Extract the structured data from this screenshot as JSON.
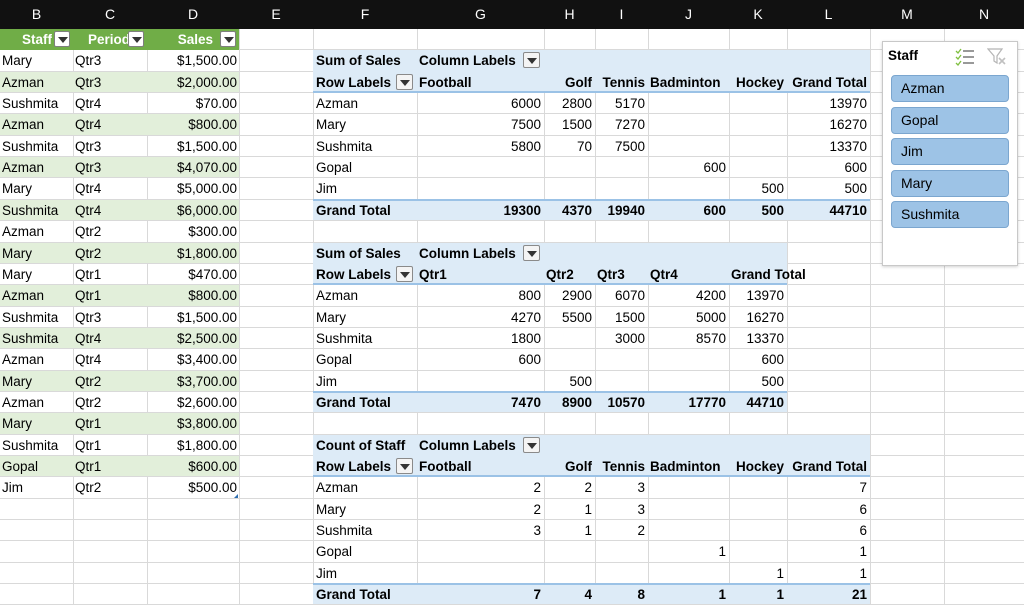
{
  "columns": [
    "B",
    "C",
    "D",
    "E",
    "F",
    "G",
    "H",
    "I",
    "J",
    "K",
    "L",
    "M",
    "N"
  ],
  "table": {
    "headers": [
      "Staff",
      "Period",
      "Sales"
    ],
    "rows": [
      [
        "Mary",
        "Qtr3",
        "$1,500.00"
      ],
      [
        "Azman",
        "Qtr3",
        "$2,000.00"
      ],
      [
        "Sushmita",
        "Qtr4",
        "$70.00"
      ],
      [
        "Azman",
        "Qtr4",
        "$800.00"
      ],
      [
        "Sushmita",
        "Qtr3",
        "$1,500.00"
      ],
      [
        "Azman",
        "Qtr3",
        "$4,070.00"
      ],
      [
        "Mary",
        "Qtr4",
        "$5,000.00"
      ],
      [
        "Sushmita",
        "Qtr4",
        "$6,000.00"
      ],
      [
        "Azman",
        "Qtr2",
        "$300.00"
      ],
      [
        "Mary",
        "Qtr2",
        "$1,800.00"
      ],
      [
        "Mary",
        "Qtr1",
        "$470.00"
      ],
      [
        "Azman",
        "Qtr1",
        "$800.00"
      ],
      [
        "Sushmita",
        "Qtr3",
        "$1,500.00"
      ],
      [
        "Sushmita",
        "Qtr4",
        "$2,500.00"
      ],
      [
        "Azman",
        "Qtr4",
        "$3,400.00"
      ],
      [
        "Mary",
        "Qtr2",
        "$3,700.00"
      ],
      [
        "Azman",
        "Qtr2",
        "$2,600.00"
      ],
      [
        "Mary",
        "Qtr1",
        "$3,800.00"
      ],
      [
        "Sushmita",
        "Qtr1",
        "$1,800.00"
      ],
      [
        "Gopal",
        "Qtr1",
        "$600.00"
      ],
      [
        "Jim",
        "Qtr2",
        "$500.00"
      ]
    ]
  },
  "pivots": [
    {
      "value_label": "Sum of Sales",
      "column_labels": "Column Labels",
      "row_labels": "Row Labels",
      "columns": [
        "Football",
        "Golf",
        "Tennis",
        "Badminton",
        "Hockey",
        "Grand Total"
      ],
      "rows": [
        {
          "label": "Azman",
          "values": [
            "6000",
            "2800",
            "5170",
            "",
            "",
            "13970"
          ]
        },
        {
          "label": "Mary",
          "values": [
            "7500",
            "1500",
            "7270",
            "",
            "",
            "16270"
          ]
        },
        {
          "label": "Sushmita",
          "values": [
            "5800",
            "70",
            "7500",
            "",
            "",
            "13370"
          ]
        },
        {
          "label": "Gopal",
          "values": [
            "",
            "",
            "",
            "600",
            "",
            "600"
          ]
        },
        {
          "label": "Jim",
          "values": [
            "",
            "",
            "",
            "",
            "500",
            "500"
          ]
        }
      ],
      "total": {
        "label": "Grand Total",
        "values": [
          "19300",
          "4370",
          "19940",
          "600",
          "500",
          "44710"
        ]
      }
    },
    {
      "value_label": "Sum of Sales",
      "column_labels": "Column Labels",
      "row_labels": "Row Labels",
      "columns": [
        "Qtr1",
        "Qtr2",
        "Qtr3",
        "Qtr4",
        "Grand Total"
      ],
      "rows": [
        {
          "label": "Azman",
          "values": [
            "800",
            "2900",
            "6070",
            "4200",
            "13970"
          ]
        },
        {
          "label": "Mary",
          "values": [
            "4270",
            "5500",
            "1500",
            "5000",
            "16270"
          ]
        },
        {
          "label": "Sushmita",
          "values": [
            "1800",
            "",
            "3000",
            "8570",
            "13370"
          ]
        },
        {
          "label": "Gopal",
          "values": [
            "600",
            "",
            "",
            "",
            "600"
          ]
        },
        {
          "label": "Jim",
          "values": [
            "",
            "500",
            "",
            "",
            "500"
          ]
        }
      ],
      "total": {
        "label": "Grand Total",
        "values": [
          "7470",
          "8900",
          "10570",
          "17770",
          "44710"
        ]
      }
    },
    {
      "value_label": "Count of Staff",
      "column_labels": "Column Labels",
      "row_labels": "Row Labels",
      "columns": [
        "Football",
        "Golf",
        "Tennis",
        "Badminton",
        "Hockey",
        "Grand Total"
      ],
      "rows": [
        {
          "label": "Azman",
          "values": [
            "2",
            "2",
            "3",
            "",
            "",
            "7"
          ]
        },
        {
          "label": "Mary",
          "values": [
            "2",
            "1",
            "3",
            "",
            "",
            "6"
          ]
        },
        {
          "label": "Sushmita",
          "values": [
            "3",
            "1",
            "2",
            "",
            "",
            "6"
          ]
        },
        {
          "label": "Gopal",
          "values": [
            "",
            "",
            "",
            "1",
            "",
            "1"
          ]
        },
        {
          "label": "Jim",
          "values": [
            "",
            "",
            "",
            "",
            "1",
            "1"
          ]
        }
      ],
      "total": {
        "label": "Grand Total",
        "values": [
          "7",
          "4",
          "8",
          "1",
          "1",
          "21"
        ]
      }
    }
  ],
  "slicer": {
    "title": "Staff",
    "items": [
      "Azman",
      "Gopal",
      "Jim",
      "Mary",
      "Sushmita"
    ],
    "icons": [
      "multi-select-icon",
      "clear-filter-icon"
    ]
  },
  "colors": {
    "table_header": "#70ad47",
    "table_band": "#e2efda",
    "pivot_header": "#ddebf7",
    "pivot_line": "#9bc2e6",
    "slicer_item": "#9dc3e6",
    "column_header_bg": "#111111"
  }
}
